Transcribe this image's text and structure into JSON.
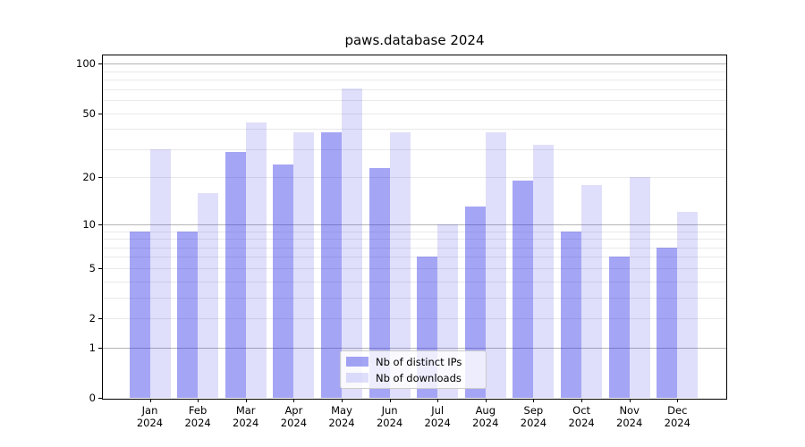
{
  "title": "paws.database 2024",
  "legend": {
    "position": "lower center",
    "items": [
      {
        "label": "Nb of distinct IPs",
        "color": "rgba(40,40,230,0.42)"
      },
      {
        "label": "Nb of downloads",
        "color": "rgba(40,40,230,0.15)"
      }
    ]
  },
  "colors": {
    "bar_distinct_ips": "rgba(40,40,230,0.42)",
    "bar_downloads": "rgba(40,40,230,0.15)",
    "bar_distinct_ips_hex_on_white": "#a5a5f2",
    "bar_downloads_hex_on_white": "#dfdffb",
    "grid_major": "#b5b5b5",
    "grid_minor": "#e9e9e9",
    "axis_spine": "#000000",
    "background": "#ffffff",
    "text": "#000000"
  },
  "chart_data": {
    "type": "bar",
    "title": "paws.database 2024",
    "xlabel": "",
    "ylabel": "",
    "y_scale": "log1p",
    "ylim": [
      0,
      112
    ],
    "grid": true,
    "legend_position": "lower center",
    "categories": [
      "Jan 2024",
      "Feb 2024",
      "Mar 2024",
      "Apr 2024",
      "May 2024",
      "Jun 2024",
      "Jul 2024",
      "Aug 2024",
      "Sep 2024",
      "Oct 2024",
      "Nov 2024",
      "Dec 2024"
    ],
    "series": [
      {
        "name": "Nb of distinct IPs",
        "values": [
          9,
          9,
          29,
          24,
          38,
          23,
          6,
          13,
          19,
          9,
          6,
          7
        ]
      },
      {
        "name": "Nb of downloads",
        "values": [
          30,
          16,
          44,
          38,
          71,
          38,
          10,
          38,
          32,
          18,
          20,
          12
        ]
      }
    ],
    "y_ticks": [
      0,
      1,
      2,
      5,
      10,
      20,
      50,
      100
    ],
    "y_major_gridlines": [
      1,
      10,
      100
    ],
    "y_minor_gridlines": [
      2,
      3,
      4,
      5,
      6,
      7,
      8,
      9,
      20,
      30,
      40,
      50,
      60,
      70,
      80,
      90
    ]
  }
}
